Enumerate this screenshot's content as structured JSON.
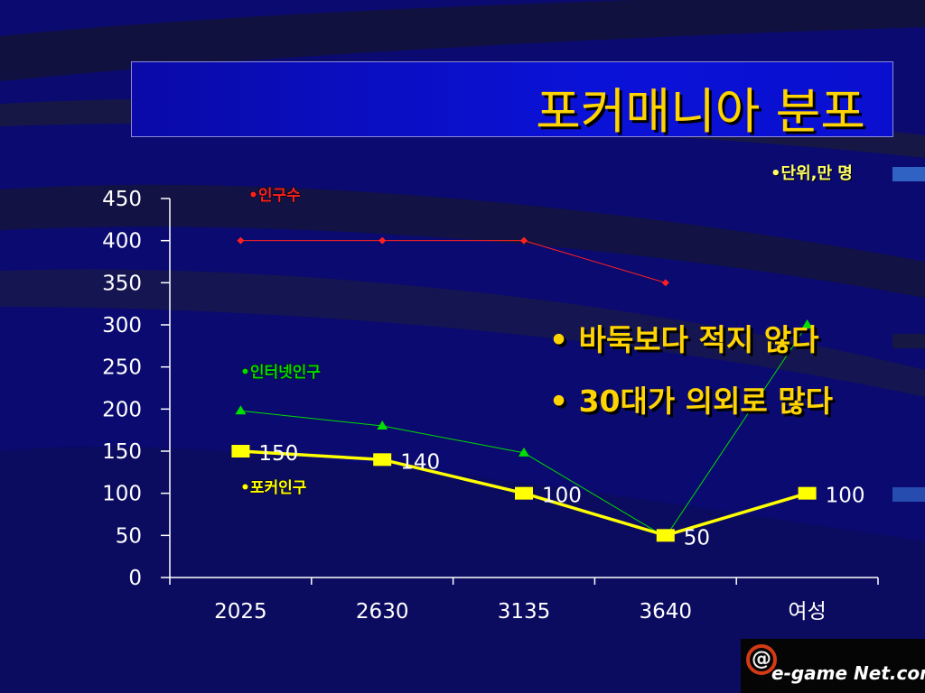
{
  "slide": {
    "title": "포커매니아 분포",
    "unit_note": "•단위,만 명",
    "bullets": [
      "• 바둑보다 적지 않다",
      "• 30대가 의외로 많다"
    ],
    "logo": {
      "mark": "@",
      "text": "e-game Net.com"
    }
  },
  "colors": {
    "background": "#0a0a6e",
    "title_text": "#ffd400",
    "population": "#ff2020",
    "internet": "#00dd00",
    "poker": "#ffff00",
    "axis": "#ffffff"
  },
  "chart_data": {
    "type": "line",
    "categories": [
      "2025",
      "2630",
      "3135",
      "3640",
      "여성"
    ],
    "ylim": [
      0,
      450
    ],
    "yticks": [
      0,
      50,
      100,
      150,
      200,
      250,
      300,
      350,
      400,
      450
    ],
    "grid": false,
    "series": [
      {
        "name": "•인구수",
        "marker": "diamond",
        "values": [
          400,
          400,
          400,
          350,
          null
        ]
      },
      {
        "name": "•인터넷인구",
        "marker": "triangle",
        "values": [
          198,
          180,
          148,
          48,
          300
        ]
      },
      {
        "name": "•포커인구",
        "marker": "square",
        "values": [
          150,
          140,
          100,
          50,
          100
        ],
        "data_labels": [
          "150",
          "140",
          "100",
          "50",
          "100"
        ]
      }
    ]
  }
}
